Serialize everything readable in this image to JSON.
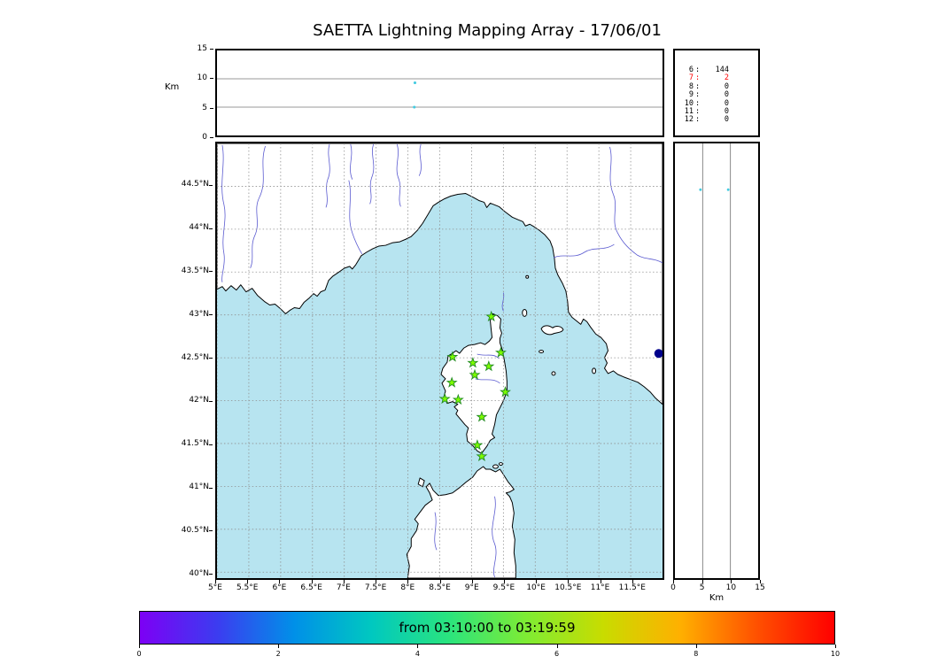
{
  "title": "SAETTA Lightning Mapping Array - 17/06/01",
  "colors": {
    "sea": "#b7e4f0",
    "land": "#ffffff",
    "coast": "#000000",
    "river": "#5a5ad0",
    "grid": "#8f8f8f",
    "panel_grid": "#777777",
    "station_fill": "#7CFC00",
    "station_edge": "#228B22",
    "count_highlight": "#ff0000"
  },
  "chart_data": [
    {
      "panel": "altitude-longitude",
      "type": "scatter",
      "ylabel": "Km",
      "ylim": [
        0,
        15
      ],
      "yticks": [
        0,
        5,
        10,
        15
      ],
      "gridlines": [
        5,
        10
      ],
      "xlim": [
        5,
        12
      ],
      "points": [
        {
          "x": 8.11,
          "y": 9.3,
          "color": "#45cbe0",
          "r": 1.6
        },
        {
          "x": 8.1,
          "y": 5.0,
          "color": "#45cbe0",
          "r": 1.6
        }
      ]
    },
    {
      "panel": "stations-contributing-counts",
      "type": "table",
      "rows": [
        {
          "label": "6",
          "value": "144",
          "highlight": false
        },
        {
          "label": "7",
          "value": "2",
          "highlight": true
        },
        {
          "label": "8",
          "value": "0",
          "highlight": false
        },
        {
          "label": "9",
          "value": "0",
          "highlight": false
        },
        {
          "label": "10",
          "value": "0",
          "highlight": false
        },
        {
          "label": "11",
          "value": "0",
          "highlight": false
        },
        {
          "label": "12",
          "value": "0",
          "highlight": false
        }
      ]
    },
    {
      "panel": "map-longitude-latitude",
      "type": "scatter",
      "xlim": [
        5,
        12
      ],
      "ylim": [
        39.93,
        45.0
      ],
      "lon_ticks": [
        {
          "v": 5,
          "label": "5°E"
        },
        {
          "v": 5.5,
          "label": "5.5°E"
        },
        {
          "v": 6,
          "label": "6°E"
        },
        {
          "v": 6.5,
          "label": "6.5°E"
        },
        {
          "v": 7,
          "label": "7°E"
        },
        {
          "v": 7.5,
          "label": "7.5°E"
        },
        {
          "v": 8,
          "label": "8°E"
        },
        {
          "v": 8.5,
          "label": "8.5°E"
        },
        {
          "v": 9,
          "label": "9°E"
        },
        {
          "v": 9.5,
          "label": "9.5°E"
        },
        {
          "v": 10,
          "label": "10°E"
        },
        {
          "v": 10.5,
          "label": "10.5°E"
        },
        {
          "v": 11,
          "label": "11°E"
        },
        {
          "v": 11.5,
          "label": "11.5°E"
        }
      ],
      "lat_ticks": [
        {
          "v": 44.5,
          "label": "44.5°N"
        },
        {
          "v": 44,
          "label": "44°N"
        },
        {
          "v": 43.5,
          "label": "43.5°N"
        },
        {
          "v": 43,
          "label": "43°N"
        },
        {
          "v": 42.5,
          "label": "42.5°N"
        },
        {
          "v": 42,
          "label": "42°N"
        },
        {
          "v": 41.5,
          "label": "41.5°N"
        },
        {
          "v": 41,
          "label": "41°N"
        },
        {
          "v": 40.5,
          "label": "40.5°N"
        },
        {
          "v": 40,
          "label": "40°N"
        }
      ],
      "stations": [
        [
          9.31,
          42.98
        ],
        [
          8.7,
          42.51
        ],
        [
          9.02,
          42.44
        ],
        [
          9.27,
          42.4
        ],
        [
          9.46,
          42.56
        ],
        [
          8.69,
          42.21
        ],
        [
          9.05,
          42.3
        ],
        [
          8.58,
          42.02
        ],
        [
          8.79,
          42.01
        ],
        [
          9.53,
          42.1
        ],
        [
          9.16,
          41.81
        ],
        [
          9.09,
          41.48
        ],
        [
          9.16,
          41.35
        ]
      ],
      "points": [
        {
          "x": 11.94,
          "y": 42.55,
          "color": "#00008b",
          "r": 5
        }
      ]
    },
    {
      "panel": "altitude-latitude",
      "type": "scatter",
      "xlabel": "Km",
      "xlim": [
        0,
        15
      ],
      "xticks": [
        0,
        5,
        10,
        15
      ],
      "gridlines": [
        5,
        10
      ],
      "points": [
        {
          "x": 4.6,
          "y": 44.46,
          "color": "#45cbe0",
          "r": 1.5
        },
        {
          "x": 9.6,
          "y": 44.46,
          "color": "#45cbe0",
          "r": 1.5
        }
      ]
    },
    {
      "panel": "time-colorbar",
      "type": "colorbar",
      "label": "from 03:10:00 to 03:19:59",
      "range": [
        0,
        10
      ],
      "ticks": [
        0,
        2,
        4,
        6,
        8,
        10
      ],
      "colors": [
        "#7d00f5",
        "#3c3cf0",
        "#0090e8",
        "#00c8c0",
        "#2ae47e",
        "#7eec34",
        "#c8dc00",
        "#ffb000",
        "#ff5000",
        "#ff0000"
      ]
    }
  ]
}
